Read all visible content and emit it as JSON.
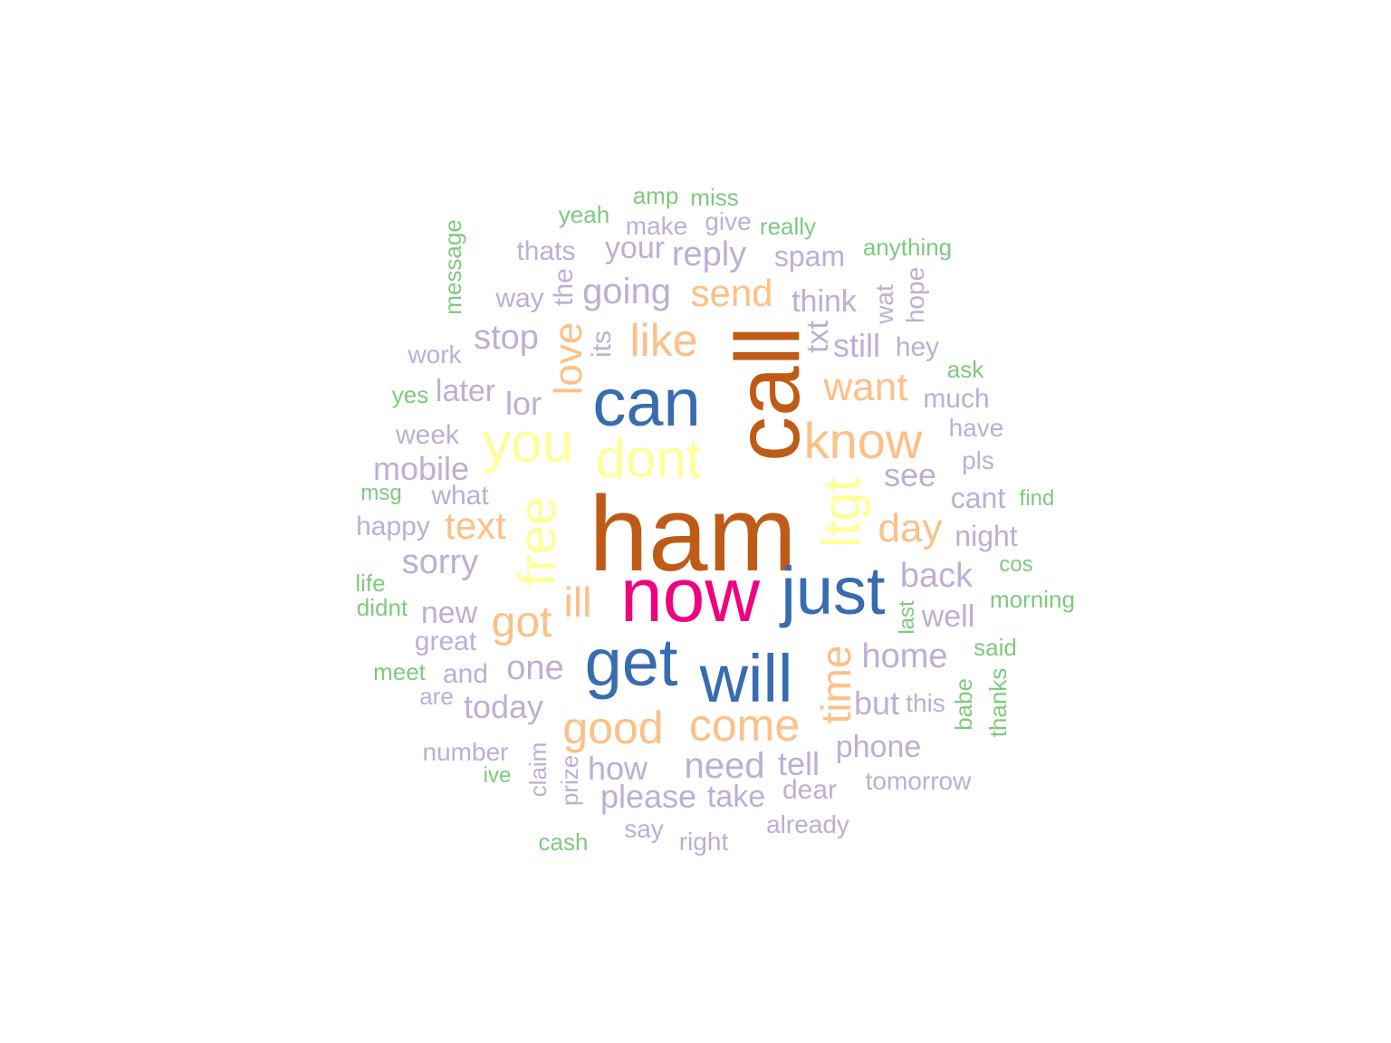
{
  "palette": {
    "green": "#7fc97f",
    "lavender": "#beaed4",
    "orange": "#fdc086",
    "yellow": "#ffff99",
    "blue": "#386cb0",
    "pink": "#f0027f",
    "brown": "#bf5b17"
  },
  "words": [
    {
      "text": "ham",
      "color": "brown"
    },
    {
      "text": "call",
      "color": "brown"
    },
    {
      "text": "now",
      "color": "pink"
    },
    {
      "text": "can",
      "color": "blue"
    },
    {
      "text": "get",
      "color": "blue"
    },
    {
      "text": "will",
      "color": "blue"
    },
    {
      "text": "just",
      "color": "blue"
    },
    {
      "text": "you",
      "color": "yellow"
    },
    {
      "text": "dont",
      "color": "yellow"
    },
    {
      "text": "free",
      "color": "yellow"
    },
    {
      "text": "ltgt",
      "color": "yellow"
    },
    {
      "text": "know",
      "color": "orange"
    },
    {
      "text": "like",
      "color": "orange"
    },
    {
      "text": "send",
      "color": "orange"
    },
    {
      "text": "love",
      "color": "orange"
    },
    {
      "text": "want",
      "color": "orange"
    },
    {
      "text": "got",
      "color": "orange"
    },
    {
      "text": "good",
      "color": "orange"
    },
    {
      "text": "come",
      "color": "orange"
    },
    {
      "text": "time",
      "color": "orange"
    },
    {
      "text": "text",
      "color": "orange"
    },
    {
      "text": "ill",
      "color": "orange"
    },
    {
      "text": "day",
      "color": "orange"
    },
    {
      "text": "going",
      "color": "lavender"
    },
    {
      "text": "reply",
      "color": "lavender"
    },
    {
      "text": "stop",
      "color": "lavender"
    },
    {
      "text": "still",
      "color": "lavender"
    },
    {
      "text": "later",
      "color": "lavender"
    },
    {
      "text": "lor",
      "color": "lavender"
    },
    {
      "text": "mobile",
      "color": "lavender"
    },
    {
      "text": "see",
      "color": "lavender"
    },
    {
      "text": "sorry",
      "color": "lavender"
    },
    {
      "text": "back",
      "color": "lavender"
    },
    {
      "text": "one",
      "color": "lavender"
    },
    {
      "text": "home",
      "color": "lavender"
    },
    {
      "text": "new",
      "color": "lavender"
    },
    {
      "text": "well",
      "color": "lavender"
    },
    {
      "text": "today",
      "color": "lavender"
    },
    {
      "text": "need",
      "color": "lavender"
    },
    {
      "text": "phone",
      "color": "lavender"
    },
    {
      "text": "please",
      "color": "lavender"
    },
    {
      "text": "how",
      "color": "lavender"
    },
    {
      "text": "take",
      "color": "lavender"
    },
    {
      "text": "tell",
      "color": "lavender"
    },
    {
      "text": "but",
      "color": "lavender"
    },
    {
      "text": "think",
      "color": "lavender"
    },
    {
      "text": "your",
      "color": "lavender"
    },
    {
      "text": "spam",
      "color": "lavender"
    },
    {
      "text": "thats",
      "color": "lavender"
    },
    {
      "text": "make",
      "color": "lavender"
    },
    {
      "text": "give",
      "color": "lavender"
    },
    {
      "text": "way",
      "color": "lavender"
    },
    {
      "text": "the",
      "color": "lavender"
    },
    {
      "text": "its",
      "color": "lavender"
    },
    {
      "text": "txt",
      "color": "lavender"
    },
    {
      "text": "wat",
      "color": "lavender"
    },
    {
      "text": "hope",
      "color": "lavender"
    },
    {
      "text": "hey",
      "color": "lavender"
    },
    {
      "text": "much",
      "color": "lavender"
    },
    {
      "text": "have",
      "color": "lavender"
    },
    {
      "text": "pls",
      "color": "lavender"
    },
    {
      "text": "cant",
      "color": "lavender"
    },
    {
      "text": "night",
      "color": "lavender"
    },
    {
      "text": "work",
      "color": "lavender"
    },
    {
      "text": "week",
      "color": "lavender"
    },
    {
      "text": "what",
      "color": "lavender"
    },
    {
      "text": "happy",
      "color": "lavender"
    },
    {
      "text": "great",
      "color": "lavender"
    },
    {
      "text": "and",
      "color": "lavender"
    },
    {
      "text": "are",
      "color": "lavender"
    },
    {
      "text": "number",
      "color": "lavender"
    },
    {
      "text": "claim",
      "color": "lavender"
    },
    {
      "text": "prize",
      "color": "lavender"
    },
    {
      "text": "dear",
      "color": "lavender"
    },
    {
      "text": "tomorrow",
      "color": "lavender"
    },
    {
      "text": "already",
      "color": "lavender"
    },
    {
      "text": "say",
      "color": "lavender"
    },
    {
      "text": "right",
      "color": "lavender"
    },
    {
      "text": "this",
      "color": "lavender"
    },
    {
      "text": "amp",
      "color": "green"
    },
    {
      "text": "miss",
      "color": "green"
    },
    {
      "text": "yeah",
      "color": "green"
    },
    {
      "text": "really",
      "color": "green"
    },
    {
      "text": "anything",
      "color": "green"
    },
    {
      "text": "message",
      "color": "green"
    },
    {
      "text": "ask",
      "color": "green"
    },
    {
      "text": "yes",
      "color": "green"
    },
    {
      "text": "msg",
      "color": "green"
    },
    {
      "text": "find",
      "color": "green"
    },
    {
      "text": "cos",
      "color": "green"
    },
    {
      "text": "life",
      "color": "green"
    },
    {
      "text": "didnt",
      "color": "green"
    },
    {
      "text": "morning",
      "color": "green"
    },
    {
      "text": "last",
      "color": "green"
    },
    {
      "text": "said",
      "color": "green"
    },
    {
      "text": "meet",
      "color": "green"
    },
    {
      "text": "babe",
      "color": "green"
    },
    {
      "text": "thanks",
      "color": "green"
    },
    {
      "text": "ive",
      "color": "green"
    },
    {
      "text": "cash",
      "color": "green"
    }
  ]
}
